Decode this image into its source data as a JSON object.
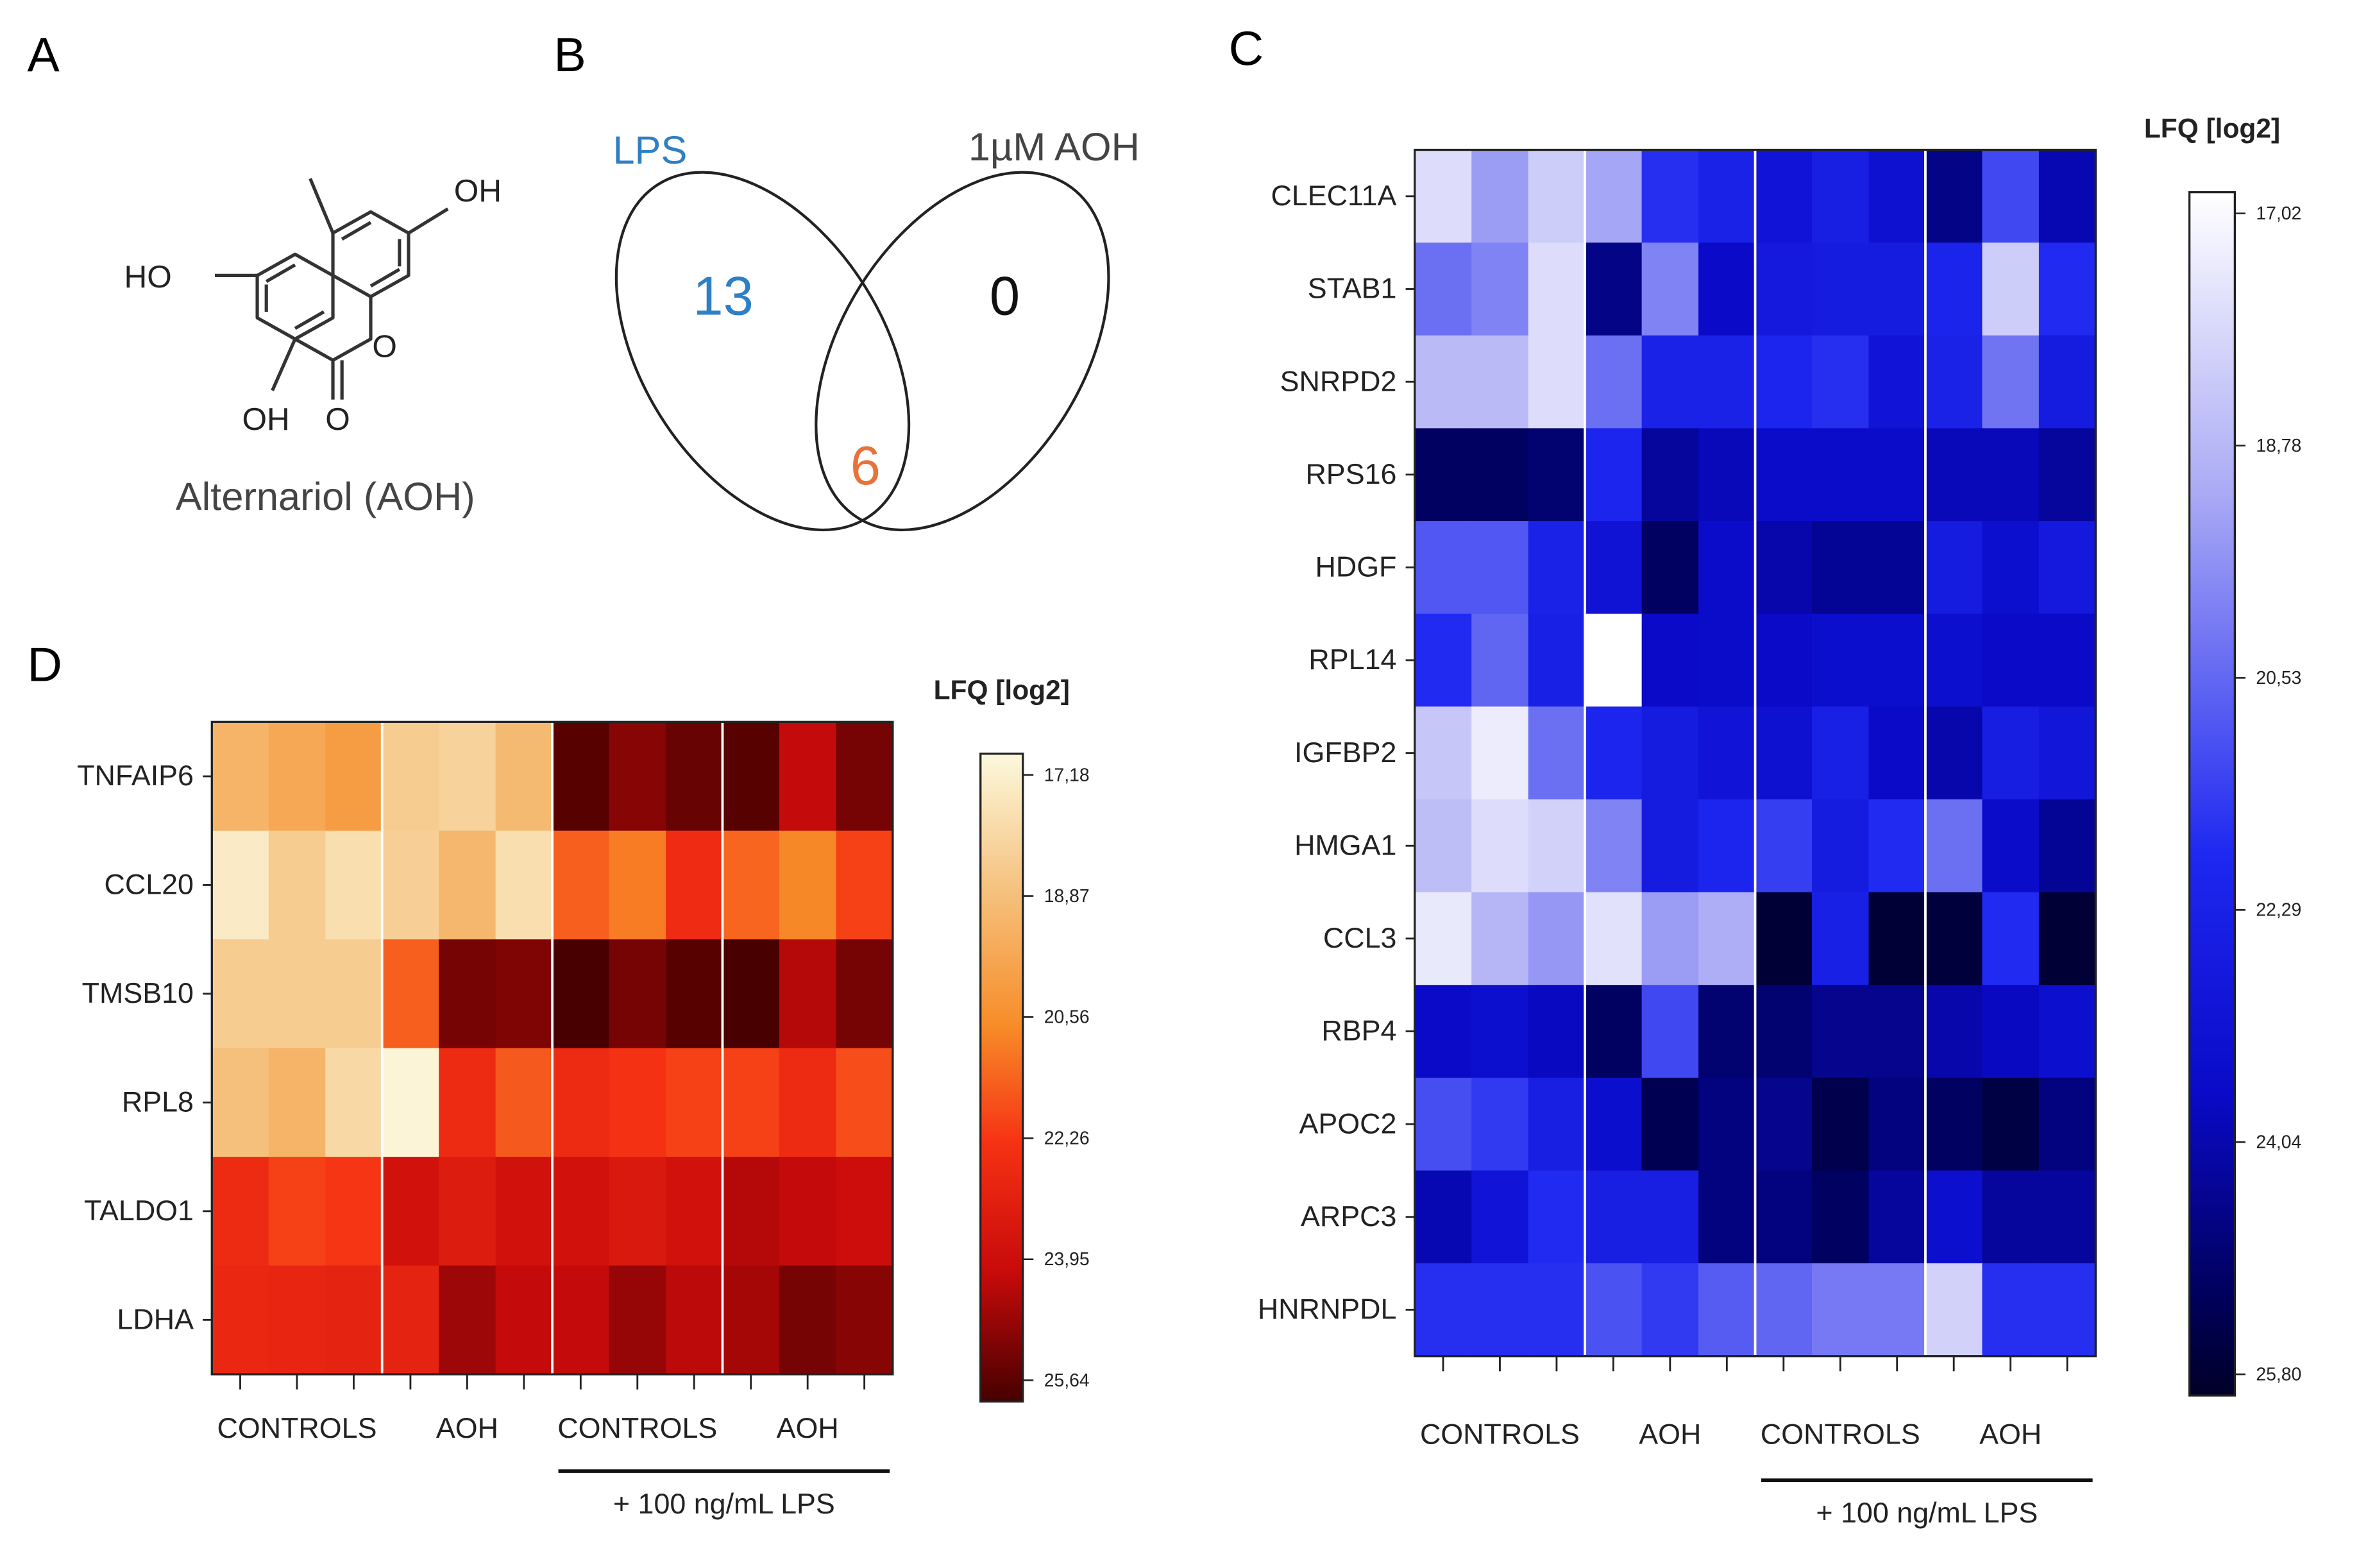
{
  "panels": {
    "A": {
      "letter": "A",
      "compound_caption": "Alternariol (AOH)",
      "atom_labels": {
        "oh_top": "OH",
        "ho_left": "HO",
        "oh_bottom": "OH",
        "ring_oxygen": "O",
        "carbonyl_oxygen": "O"
      }
    },
    "B": {
      "letter": "B",
      "set_left_label": "LPS",
      "set_right_label": "1µM AOH",
      "left_only_count": "13",
      "right_only_count": "0",
      "overlap_count": "6",
      "colors": {
        "lps": "#2e7fc4",
        "overlap": "#e8733a",
        "aoh": "#111111"
      }
    },
    "C": {
      "letter": "C"
    },
    "D": {
      "letter": "D"
    }
  },
  "chart_data": [
    {
      "id": "D",
      "type": "heatmap",
      "title": "",
      "colormap": "red-hot",
      "genes": [
        "TNFAIP6",
        "CCL20",
        "TMSB10",
        "RPL8",
        "TALDO1",
        "LDHA"
      ],
      "columns_per_group": 3,
      "group_labels": [
        "CONTROLS",
        "AOH",
        "CONTROLS",
        "AOH"
      ],
      "treatment_label": "+ 100 ng/mL  LPS",
      "legend_title": "LFQ [log2]",
      "legend_ticks": [
        "17,18",
        "18,87",
        "20,56",
        "22,26",
        "23,95",
        "25,64"
      ],
      "range": [
        17.18,
        25.64
      ],
      "values": [
        [
          19.4,
          19.8,
          20.2,
          18.6,
          18.4,
          19.2,
          25.4,
          24.8,
          25.2,
          25.4,
          24.0,
          25.0
        ],
        [
          17.6,
          18.6,
          18.0,
          18.5,
          19.3,
          18.0,
          21.5,
          21.0,
          22.5,
          21.4,
          20.8,
          22.0
        ],
        [
          18.6,
          18.6,
          18.6,
          21.5,
          25.0,
          24.9,
          25.6,
          25.0,
          25.4,
          25.6,
          24.2,
          25.0
        ],
        [
          19.0,
          19.4,
          18.2,
          17.3,
          22.6,
          21.6,
          22.6,
          22.3,
          22.0,
          22.0,
          22.6,
          21.8
        ],
        [
          22.6,
          22.0,
          22.2,
          23.6,
          23.2,
          23.6,
          23.6,
          23.3,
          23.6,
          24.2,
          24.0,
          23.8
        ],
        [
          22.7,
          22.8,
          22.9,
          22.9,
          24.5,
          24.0,
          24.0,
          24.6,
          24.1,
          24.4,
          25.0,
          24.8
        ]
      ]
    },
    {
      "id": "C",
      "type": "heatmap",
      "title": "",
      "colormap": "blue",
      "genes": [
        "CLEC11A",
        "STAB1",
        "SNRPD2",
        "RPS16",
        "HDGF",
        "RPL14",
        "IGFBP2",
        "HMGA1",
        "CCL3",
        "RBP4",
        "APOC2",
        "ARPC3",
        "HNRNPDL"
      ],
      "columns_per_group": 3,
      "group_labels": [
        "CONTROLS",
        "AOH",
        "CONTROLS",
        "AOH"
      ],
      "treatment_label": "+ 100 ng/mL  LPS",
      "legend_title": "LFQ [log2]",
      "legend_ticks": [
        "17,02",
        "18,78",
        "20,53",
        "22,29",
        "24,04",
        "25,80"
      ],
      "range": [
        17.02,
        25.8
      ],
      "values": [
        [
          17.9,
          19.5,
          18.3,
          19.3,
          21.7,
          22.2,
          23.0,
          22.4,
          23.2,
          24.5,
          21.2,
          23.9
        ],
        [
          20.4,
          20.0,
          17.9,
          24.5,
          20.0,
          23.6,
          22.7,
          22.6,
          22.6,
          22.1,
          18.3,
          21.8
        ],
        [
          18.8,
          18.8,
          17.9,
          20.4,
          22.2,
          22.2,
          22.0,
          21.7,
          23.0,
          22.2,
          20.3,
          22.6
        ],
        [
          25.0,
          25.0,
          24.8,
          22.0,
          24.2,
          23.8,
          23.5,
          23.5,
          23.5,
          23.8,
          23.8,
          24.2
        ],
        [
          20.9,
          20.9,
          22.2,
          23.1,
          25.0,
          23.5,
          24.0,
          24.3,
          24.3,
          22.6,
          23.3,
          22.7
        ],
        [
          21.8,
          20.6,
          22.3,
          17.0,
          23.6,
          23.5,
          23.6,
          23.4,
          23.4,
          23.3,
          23.6,
          23.6
        ],
        [
          18.5,
          17.5,
          20.4,
          22.0,
          22.6,
          23.0,
          23.2,
          22.3,
          23.6,
          24.0,
          22.5,
          22.9
        ],
        [
          18.7,
          17.9,
          18.2,
          20.0,
          22.6,
          22.0,
          21.4,
          22.6,
          21.8,
          20.4,
          23.5,
          24.3
        ],
        [
          17.6,
          18.9,
          19.6,
          17.8,
          19.5,
          19.1,
          25.6,
          22.3,
          25.6,
          25.5,
          21.8,
          25.6
        ],
        [
          23.6,
          23.3,
          23.7,
          25.0,
          21.2,
          24.8,
          24.8,
          24.4,
          24.4,
          24.0,
          23.7,
          23.3
        ],
        [
          21.1,
          21.5,
          22.4,
          23.4,
          25.2,
          24.6,
          24.4,
          25.3,
          24.6,
          25.0,
          25.4,
          24.6
        ],
        [
          23.9,
          23.0,
          21.8,
          22.4,
          22.4,
          24.6,
          24.6,
          25.0,
          24.2,
          23.3,
          24.2,
          24.2
        ],
        [
          21.7,
          21.7,
          21.7,
          21.0,
          21.5,
          20.8,
          20.6,
          20.2,
          20.2,
          18.2,
          21.7,
          21.7
        ]
      ]
    }
  ]
}
